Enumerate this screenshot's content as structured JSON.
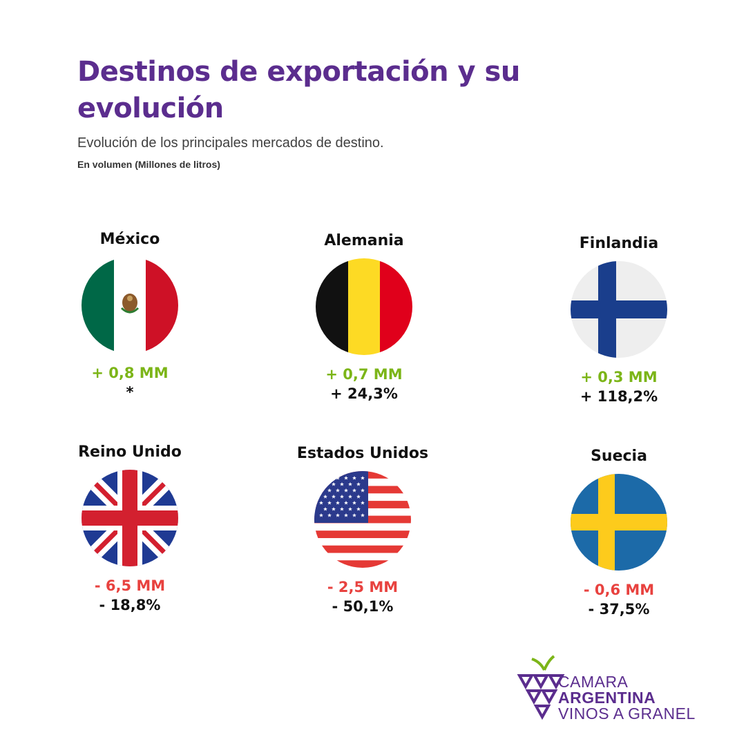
{
  "header": {
    "title": "Destinos de exportación y su evolución",
    "subtitle": "Evolución de los principales mercados de destino.",
    "unit": "En volumen (Millones de litros)"
  },
  "colors": {
    "accent": "#5b2d8e",
    "positive": "#7cb518",
    "negative": "#e8423f",
    "text": "#111111"
  },
  "countries": [
    {
      "name": "México",
      "flag_icon": "mexico-flag-icon",
      "volume_change": "+ 0,8 MM",
      "percent_change": "*",
      "trend": "positive"
    },
    {
      "name": "Alemania",
      "flag_icon": "belgium-flag-icon",
      "volume_change": "+ 0,7 MM",
      "percent_change": "+ 24,3%",
      "trend": "positive"
    },
    {
      "name": "Finlandia",
      "flag_icon": "finland-flag-icon",
      "volume_change": "+ 0,3 MM",
      "percent_change": "+ 118,2%",
      "trend": "positive"
    },
    {
      "name": "Reino Unido",
      "flag_icon": "uk-flag-icon",
      "volume_change": "- 6,5 MM",
      "percent_change": "- 18,8%",
      "trend": "negative"
    },
    {
      "name": "Estados Unidos",
      "flag_icon": "usa-flag-icon",
      "volume_change": "- 2,5 MM",
      "percent_change": "- 50,1%",
      "trend": "negative"
    },
    {
      "name": "Suecia",
      "flag_icon": "sweden-flag-icon",
      "volume_change": "- 0,6 MM",
      "percent_change": "- 37,5%",
      "trend": "negative"
    }
  ],
  "logo": {
    "line1": "CAMARA",
    "line2": "ARGENTINA",
    "line3": "VINOS A GRANEL"
  }
}
